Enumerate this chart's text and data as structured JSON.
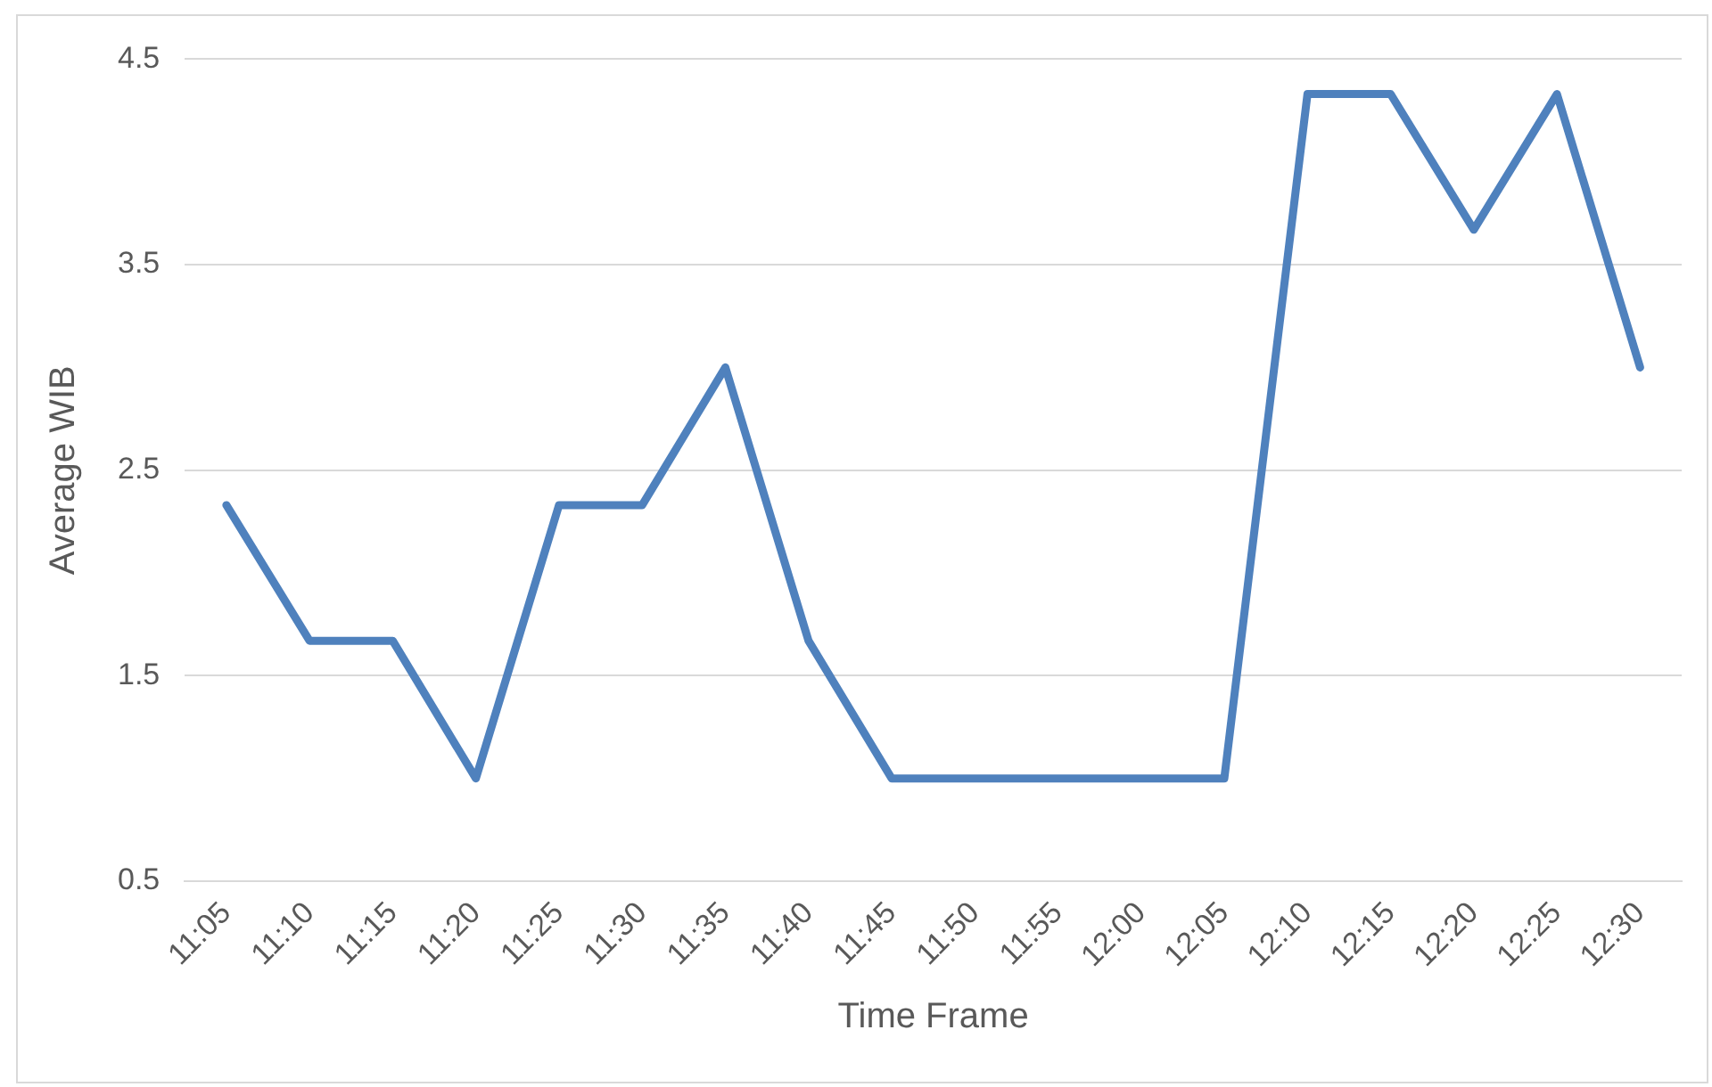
{
  "chart_data": {
    "type": "line",
    "xlabel": "Time Frame",
    "ylabel": "Average WIB",
    "categories": [
      "11:05",
      "11:10",
      "11:15",
      "11:20",
      "11:25",
      "11:30",
      "11:35",
      "11:40",
      "11:45",
      "11:50",
      "11:55",
      "12:00",
      "12:05",
      "12:10",
      "12:15",
      "12:20",
      "12:25",
      "12:30"
    ],
    "series": [
      {
        "color": "#4f81bd",
        "values": [
          2.33,
          1.67,
          1.67,
          1,
          2.33,
          2.33,
          3,
          1.67,
          1,
          1,
          1,
          1,
          1,
          4.33,
          4.33,
          3.67,
          4.33,
          3
        ]
      }
    ],
    "ylim": [
      0.5,
      4.5
    ],
    "yticks": [
      0.5,
      1.5,
      2.5,
      3.5,
      4.5
    ],
    "grid": "y",
    "legend": false,
    "marker": "none",
    "line_style": "solid"
  }
}
